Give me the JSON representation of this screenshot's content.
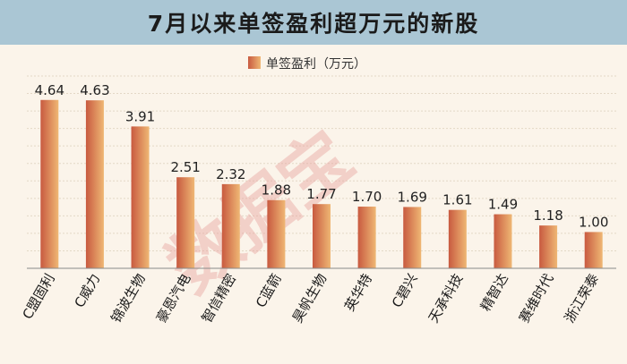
{
  "title": "7月以来单签盈利超万元的新股",
  "watermark": "数据宝",
  "colors": {
    "title_bar": "#aac6d4",
    "background": "#fbf4ea",
    "bar_light": "#efb774",
    "bar_dark": "#c85a40",
    "grid": "#e3d8c6",
    "axis": "#8a8a8a"
  },
  "chart_data": {
    "type": "bar",
    "title": "",
    "xlabel": "",
    "ylabel": "",
    "legend": {
      "label": "单签盈利（万元）",
      "position": "top-right"
    },
    "categories": [
      "C盟固利",
      "C威力",
      "锦波生物",
      "豪恩汽电",
      "智信精密",
      "C蓝箭",
      "昊帆生物",
      "英华特",
      "C碧兴",
      "天承科技",
      "精智达",
      "赛维时代",
      "浙江荣泰"
    ],
    "values": [
      4.64,
      4.63,
      3.91,
      2.51,
      2.32,
      1.88,
      1.77,
      1.7,
      1.69,
      1.61,
      1.49,
      1.18,
      1.0
    ],
    "value_labels": [
      "4.64",
      "4.63",
      "3.91",
      "2.51",
      "2.32",
      "1.88",
      "1.77",
      "1.70",
      "1.69",
      "1.61",
      "1.49",
      "1.18",
      "1.00"
    ],
    "ylim": [
      0,
      5.3
    ],
    "grid": true
  }
}
